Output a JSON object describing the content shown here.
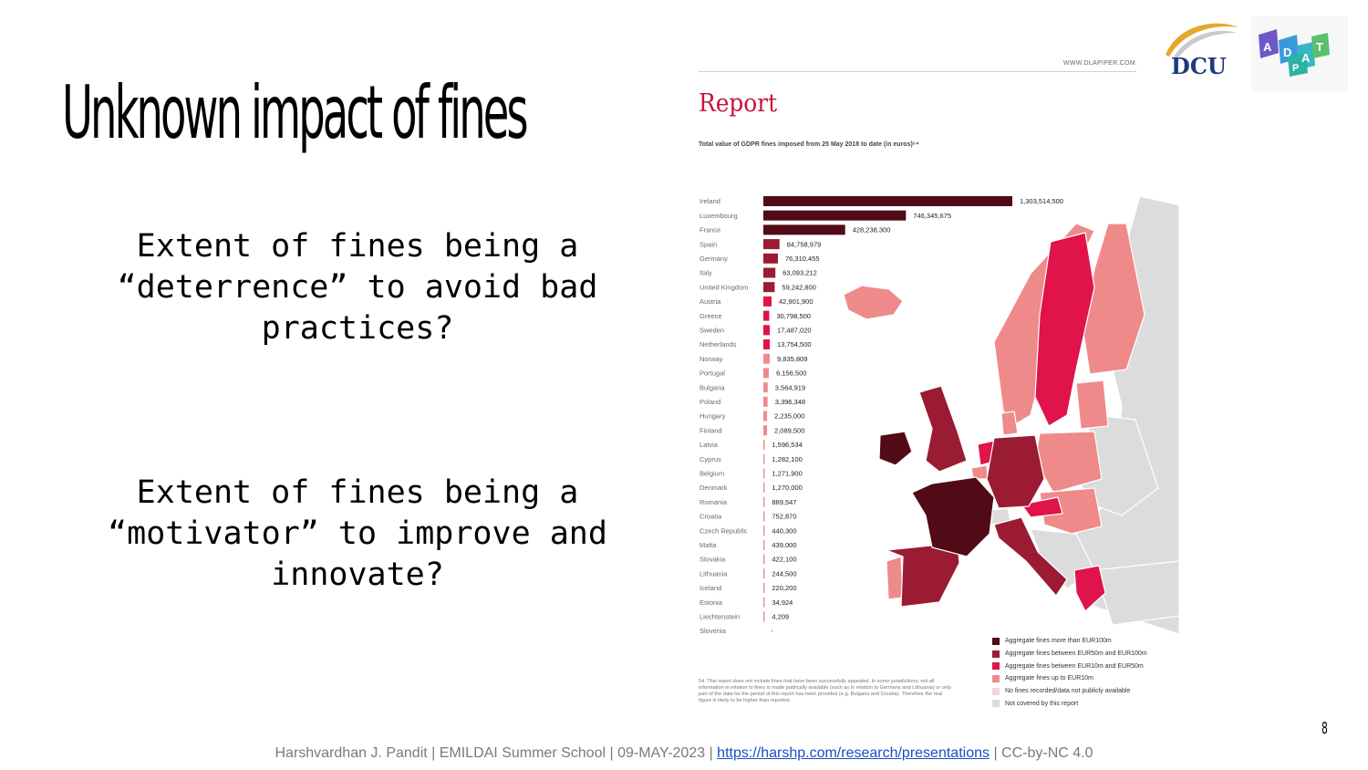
{
  "slide": {
    "title": "Unknown impact of fines",
    "question1": "Extent of fines being a “deterrence” to avoid bad practices?",
    "question2": "Extent of fines being a “motivator” to improve and innovate?",
    "page_number": "8",
    "footer_prefix": "Harshvardhan J. Pandit | EMILDAI Summer School | 09-MAY-2023 | ",
    "footer_link": "https://harshp.com/research/presentations",
    "footer_suffix": " | CC-by-NC 4.0"
  },
  "logos": {
    "dcu": "DCU",
    "adapt": "ADAPT"
  },
  "report": {
    "url": "WWW.DLAPIPER.COM",
    "heading": "Report",
    "subtitle": "Total value of GDPR fines imposed from 25 May 2018 to date (in euros)⁵⁴",
    "footnote": "54. This report does not include fines that have been successfully appealed. In some jurisdictions, not all information in relation to fines is made publically available (such as in relation to Germany and Lithuania) or only part of the data for the period of this report has been provided (e.g. Bulgaria and Croatia). Therefore the real figure is likely to be higher than reported.",
    "legend": [
      {
        "label": "Aggregate fines more than EUR100m",
        "color": "#520a16"
      },
      {
        "label": "Aggregate fines between EUR50m and EUR100m",
        "color": "#9b1b33"
      },
      {
        "label": "Aggregate fines between EUR10m and EUR50m",
        "color": "#e0134a"
      },
      {
        "label": "Aggregate fines up to EUR10m",
        "color": "#ef8a8b"
      },
      {
        "label": "No fines recorded/data not publicly available",
        "color": "#f6d3d3"
      },
      {
        "label": "Not covered by this report",
        "color": "#dcdcdc"
      }
    ]
  },
  "chart_data": {
    "type": "bar",
    "orientation": "horizontal",
    "title": "Total value of GDPR fines imposed from 25 May 2018 to date (in euros)⁵⁴",
    "categories": [
      "Ireland",
      "Luxembourg",
      "France",
      "Spain",
      "Germany",
      "Italy",
      "United Kingdom",
      "Austria",
      "Greece",
      "Sweden",
      "Netherlands",
      "Norway",
      "Portugal",
      "Bulgaria",
      "Poland",
      "Hungary",
      "Finland",
      "Latvia",
      "Cyprus",
      "Belgium",
      "Denmark",
      "Romania",
      "Croatia",
      "Czech Republic",
      "Malta",
      "Slovakia",
      "Lithuania",
      "Iceland",
      "Estonia",
      "Liechtenstein",
      "Slovenia"
    ],
    "values": [
      1303514500,
      746345675,
      428238300,
      84758979,
      76310455,
      63093212,
      59242800,
      42901900,
      30798500,
      17487020,
      13754500,
      9835809,
      6156500,
      3564919,
      3396348,
      2235000,
      2089500,
      1596534,
      1282100,
      1271900,
      1270000,
      889547,
      752870,
      440300,
      439000,
      422100,
      244500,
      220200,
      34924,
      4209,
      0
    ],
    "value_labels": [
      "1,303,514,500",
      "746,345,675",
      "428,238,300",
      "84,758,979",
      "76,310,455",
      "63,093,212",
      "59,242,800",
      "42,901,900",
      "30,798,500",
      "17,487,020",
      "13,754,500",
      "9,835,809",
      "6,156,500",
      "3,564,919",
      "3,396,348",
      "2,235,000",
      "2,089,500",
      "1,596,534",
      "1,282,100",
      "1,271,900",
      "1,270,000",
      "889,547",
      "752,870",
      "440,300",
      "439,000",
      "422,100",
      "244,500",
      "220,200",
      "34,924",
      "4,209",
      "-"
    ],
    "colors": {
      "over100m": "#520a16",
      "50to100m": "#9b1b33",
      "10to50m": "#e0134a",
      "upto10m": "#ef8a8b"
    }
  },
  "map": {
    "regions": [
      {
        "country": "Ireland",
        "tier": "over100m"
      },
      {
        "country": "France",
        "tier": "over100m"
      },
      {
        "country": "United Kingdom",
        "tier": "50to100m"
      },
      {
        "country": "Spain",
        "tier": "50to100m"
      },
      {
        "country": "Germany",
        "tier": "50to100m"
      },
      {
        "country": "Italy",
        "tier": "50to100m"
      },
      {
        "country": "Sweden",
        "tier": "10to50m"
      },
      {
        "country": "Netherlands",
        "tier": "10to50m"
      },
      {
        "country": "Austria",
        "tier": "10to50m"
      },
      {
        "country": "Greece",
        "tier": "10to50m"
      },
      {
        "country": "Norway",
        "tier": "upto10m"
      },
      {
        "country": "Finland",
        "tier": "upto10m"
      },
      {
        "country": "Iceland",
        "tier": "upto10m"
      },
      {
        "country": "Poland",
        "tier": "upto10m"
      },
      {
        "country": "Portugal",
        "tier": "upto10m"
      },
      {
        "country": "Baltics",
        "tier": "upto10m"
      },
      {
        "country": "Denmark",
        "tier": "upto10m"
      },
      {
        "country": "Belgium",
        "tier": "upto10m"
      },
      {
        "country": "Central Europe",
        "tier": "upto10m"
      },
      {
        "country": "Slovenia",
        "tier": "none"
      },
      {
        "country": "Russia",
        "tier": "excluded"
      },
      {
        "country": "Belarus",
        "tier": "excluded"
      },
      {
        "country": "Ukraine",
        "tier": "excluded"
      },
      {
        "country": "Switzerland",
        "tier": "excluded"
      },
      {
        "country": "Balkans",
        "tier": "excluded"
      },
      {
        "country": "Turkey",
        "tier": "excluded"
      }
    ]
  }
}
